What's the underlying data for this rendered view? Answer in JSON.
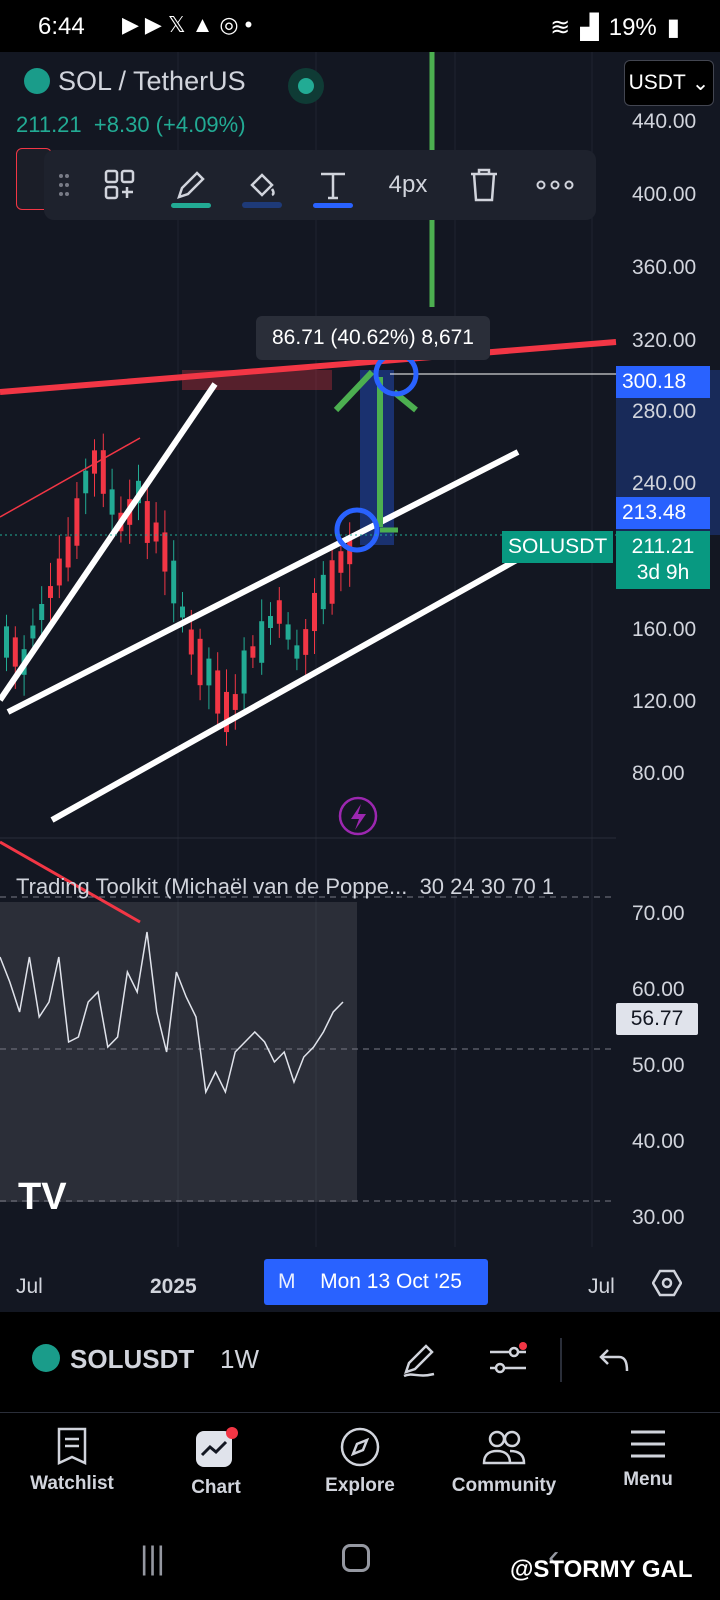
{
  "status_bar": {
    "time": "6:44",
    "battery": "19%"
  },
  "header": {
    "symbol": "SOL / TetherUS",
    "price": "211.21",
    "change": "+8.30 (+4.09%)",
    "currency": "USDT"
  },
  "toolbar": {
    "width_label": "4px",
    "pen_color": "#22ab94",
    "text_color": "#2962ff"
  },
  "price_axis": [
    "440.00",
    "400.00",
    "360.00",
    "320.00",
    "280.00",
    "240.00",
    "160.00",
    "120.00",
    "80.00"
  ],
  "tags": {
    "target": "300.18",
    "entry": "213.48",
    "symbol_tag": "SOLUSDT",
    "current": "211.21",
    "countdown": "3d 9h"
  },
  "measure_label": "86.71 (40.62%) 8,671",
  "indicator": {
    "title": "Trading Toolkit (Michaël van de Poppe...",
    "params": "30 24 30 70 1",
    "axis": [
      "70.00",
      "60.00",
      "50.00",
      "40.00",
      "30.00"
    ],
    "value": "56.77"
  },
  "time_axis": {
    "labels": [
      "Jul",
      "2025",
      "Jul"
    ],
    "crosshair_partial": "M",
    "crosshair_date": "Mon 13 Oct '25"
  },
  "bottom_bar": {
    "symbol": "SOLUSDT",
    "timeframe": "1W"
  },
  "nav": [
    {
      "label": "Watchlist",
      "icon": "watchlist-icon"
    },
    {
      "label": "Chart",
      "icon": "chart-icon"
    },
    {
      "label": "Explore",
      "icon": "compass-icon"
    },
    {
      "label": "Community",
      "icon": "community-icon"
    },
    {
      "label": "Menu",
      "icon": "menu-icon"
    }
  ],
  "watermark": "@STORMY GAL",
  "colors": {
    "up": "#22ab94",
    "down": "#f23645",
    "accent": "#2962ff",
    "bg": "#131722"
  }
}
